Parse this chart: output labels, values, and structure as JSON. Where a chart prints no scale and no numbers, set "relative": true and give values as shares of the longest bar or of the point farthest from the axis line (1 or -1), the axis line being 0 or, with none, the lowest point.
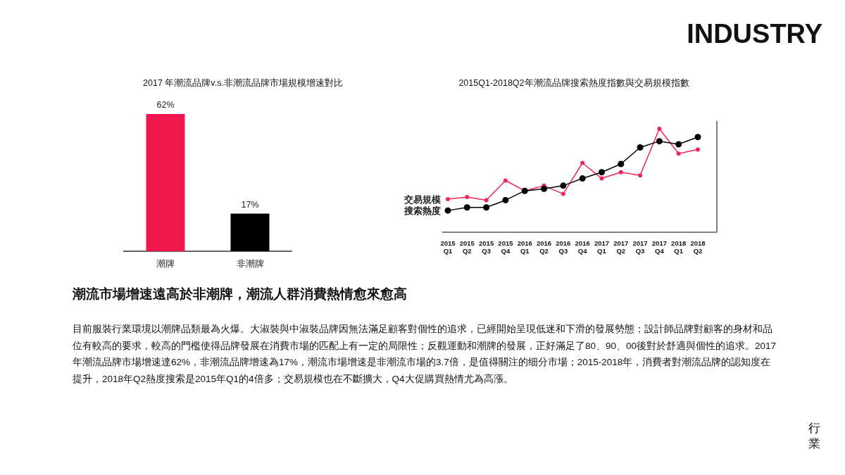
{
  "chart_data": [
    {
      "type": "bar",
      "title": "2017 年潮流品牌v.s.非潮流品牌市場規模增速對比",
      "categories": [
        "潮牌",
        "非潮牌"
      ],
      "values": [
        62,
        17
      ],
      "colors": [
        "#f0174f",
        "#000000"
      ],
      "value_labels": [
        "62%",
        "17%"
      ]
    },
    {
      "type": "line",
      "title": "2015Q1-2018Q2年潮流品牌搜索熱度指數與交易規模指數",
      "categories": [
        "2015\nQ1",
        "2015\nQ2",
        "2015\nQ3",
        "2015\nQ4",
        "2016\nQ1",
        "2016\nQ2",
        "2016\nQ3",
        "2016\nQ4",
        "2017\nQ1",
        "2017\nQ2",
        "2017\nQ3",
        "2017\nQ4",
        "2018\nQ1",
        "2018\nQ2"
      ],
      "relative": true,
      "marker": "circle",
      "series": [
        {
          "name": "交易規模",
          "color": "#f0285a",
          "values": [
            0.32,
            0.34,
            0.31,
            0.5,
            0.4,
            0.45,
            0.37,
            0.67,
            0.52,
            0.58,
            0.55,
            1.0,
            0.76,
            0.8
          ]
        },
        {
          "name": "搜索熱度",
          "color": "#000000",
          "values": [
            0.21,
            0.24,
            0.24,
            0.31,
            0.4,
            0.42,
            0.45,
            0.52,
            0.58,
            0.66,
            0.82,
            0.88,
            0.85,
            0.92
          ]
        }
      ]
    },
    {
      "type": "other",
      "title": "潮流市場增速遠高於非潮牌，潮流人群消費熱情愈來愈高",
      "annotations": [
        "目前服裝行業環境以潮牌品類最為火爆。大淑裝與中淑裝品牌因無法滿足顧客對個性的追求，已經開始呈現低迷和下滑的發展勢態；設計師品牌對顧客的身材和品位有較高的要求，較高的門檻使得品牌發展在消費市場的匹配上有一定的局限性；反觀運動和潮牌的發展，正好滿足了80、90、00後對於舒適與個性的追求。2017年潮流品牌市場增速達62%，非潮流品牌增速為17%，潮流市場增速是非潮流市場的3.7倍，是值得關注的细分市場；2015-2018年，消費者對潮流品牌的認知度在提升，2018年Q2熱度搜索是2015年Q1的4倍多；交易規模也在不斷擴大，Q4大促購買熱情尤為高漲。",
        "INDUSTRY",
        "行業"
      ]
    }
  ]
}
